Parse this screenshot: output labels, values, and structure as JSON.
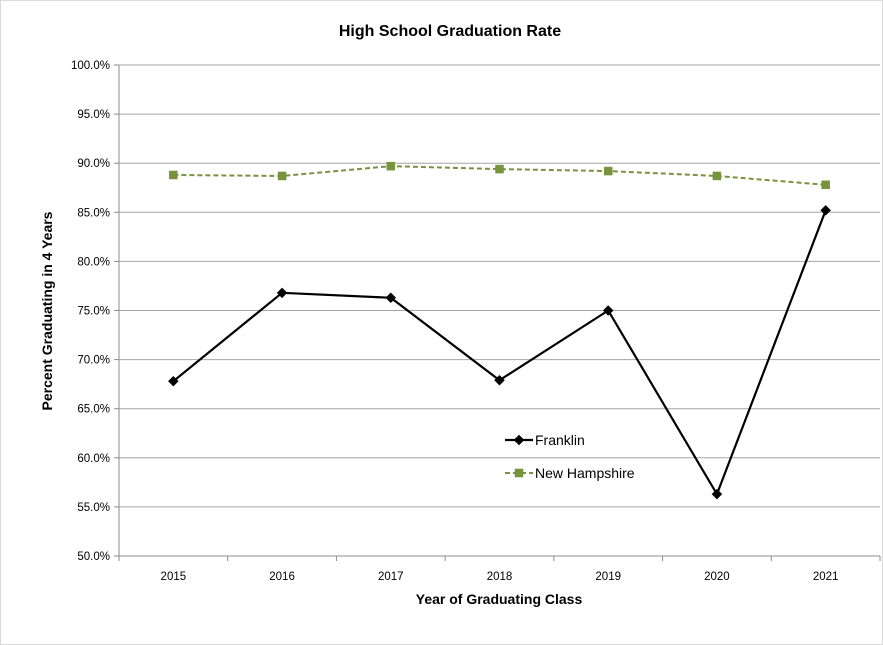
{
  "chart_data": {
    "type": "line",
    "title": "High School Graduation Rate",
    "xlabel": "Year of Graduating Class",
    "ylabel": "Percent Graduating in 4 Years",
    "categories": [
      "2015",
      "2016",
      "2017",
      "2018",
      "2019",
      "2020",
      "2021"
    ],
    "ylim": [
      50,
      100
    ],
    "yticks": [
      50,
      55,
      60,
      65,
      70,
      75,
      80,
      85,
      90,
      95,
      100
    ],
    "ytick_labels": [
      "50.0%",
      "55.0%",
      "60.0%",
      "65.0%",
      "70.0%",
      "75.0%",
      "80.0%",
      "85.0%",
      "90.0%",
      "95.0%",
      "100.0%"
    ],
    "grid": true,
    "legend_position": "lower-right inside plot",
    "series": [
      {
        "name": "Franklin",
        "values": [
          67.8,
          76.8,
          76.3,
          67.9,
          75.0,
          56.3,
          85.2
        ],
        "color": "#000000",
        "marker": "diamond",
        "line_style": "solid"
      },
      {
        "name": "New Hampshire",
        "values": [
          88.8,
          88.7,
          89.7,
          89.4,
          89.2,
          88.7,
          87.8
        ],
        "color": "#77933c",
        "marker": "square",
        "line_style": "dashed"
      }
    ]
  }
}
